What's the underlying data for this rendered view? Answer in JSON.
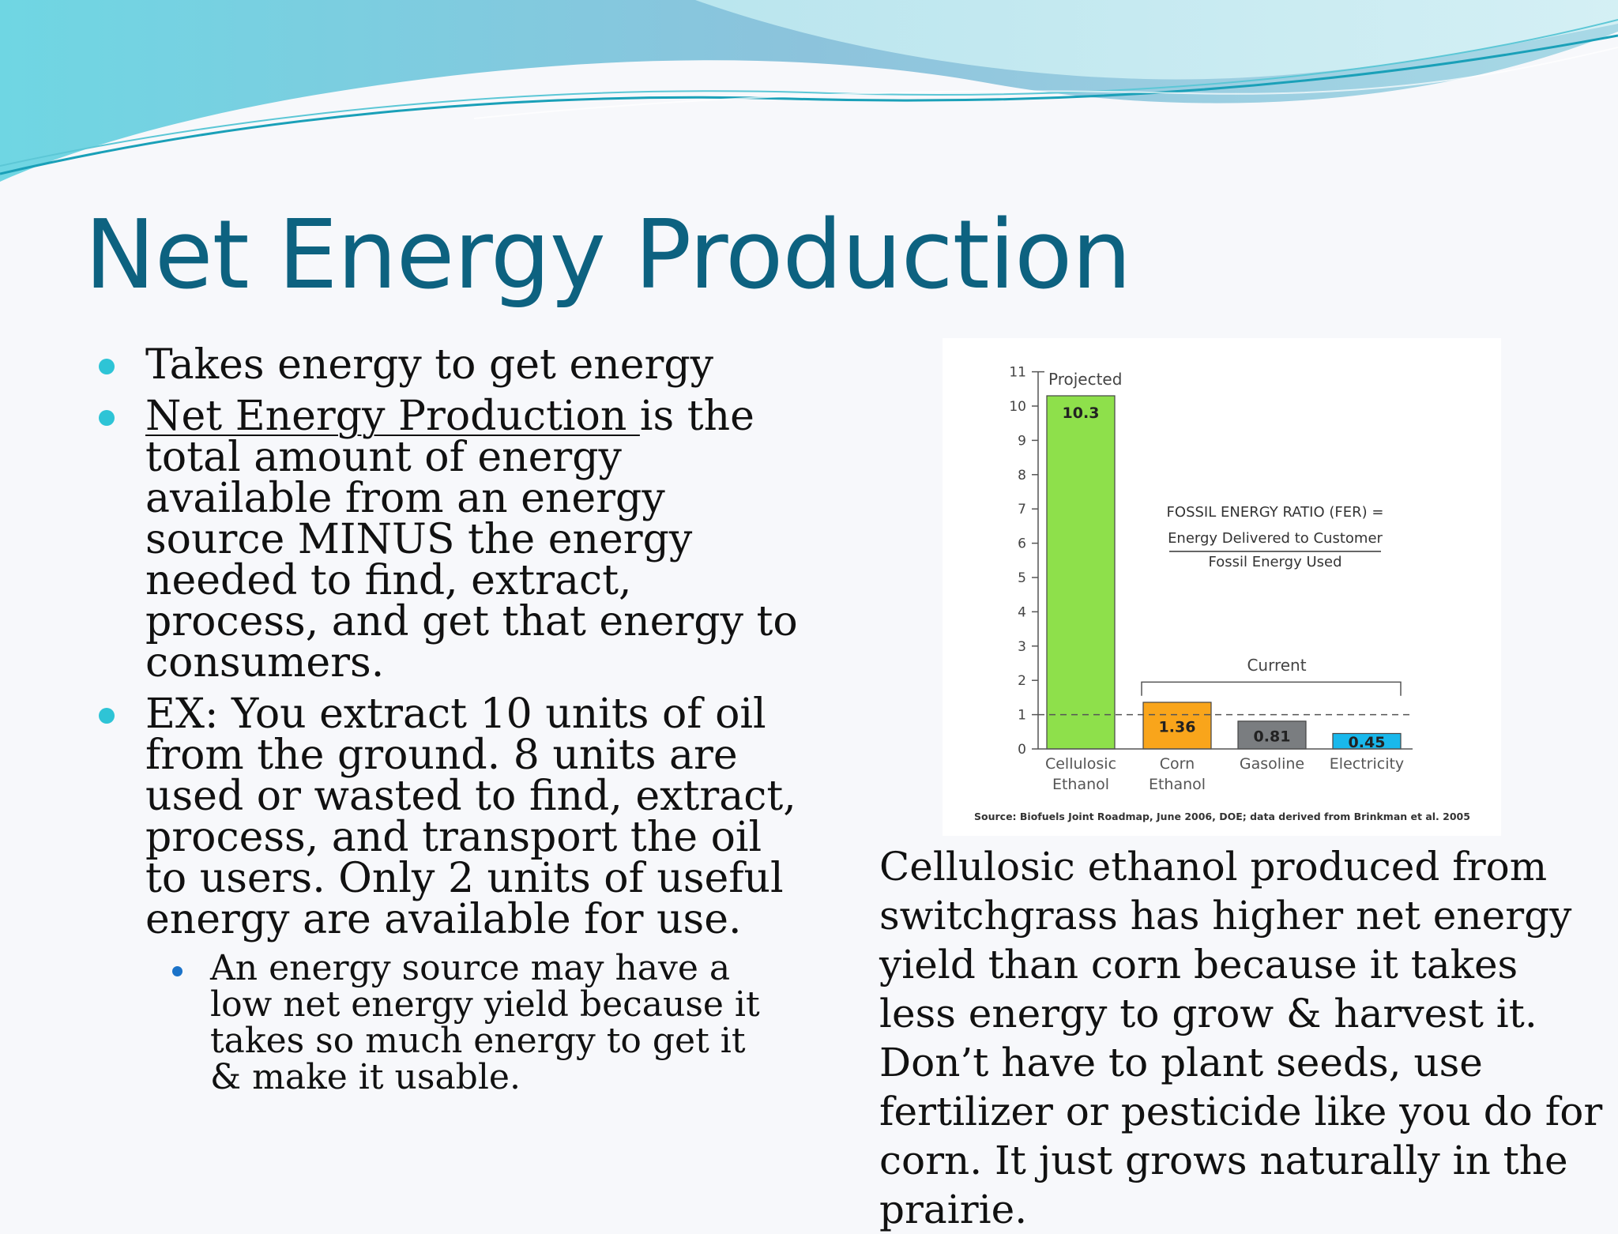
{
  "slide": {
    "title": "Net Energy Production",
    "bullets": [
      {
        "text": "Takes energy to get energy"
      },
      {
        "term": "Net Energy Production ",
        "text": "is the total amount of energy available from an energy source MINUS the energy needed to find, extract, process, and get that energy to consumers."
      },
      {
        "text": "EX:  You extract 10 units of oil from the ground.  8 units are used or wasted to find, extract, process, and transport the oil to users.  Only 2 units of useful energy are available for use."
      }
    ],
    "sub_bullet": "An energy source may have a low net energy yield because it takes so much energy to get it & make it usable.",
    "caption": "Cellulosic ethanol produced from switchgrass has higher net energy yield than corn because it takes less energy to grow & harvest it.  Don’t have to plant seeds, use fertilizer or pesticide like you do for corn.  It just grows naturally in the prairie."
  },
  "chart_data": {
    "type": "bar",
    "categories": [
      "Cellulosic\nEthanol",
      "Corn\nEthanol",
      "Gasoline",
      "Electricity"
    ],
    "values": [
      10.3,
      1.36,
      0.81,
      0.45
    ],
    "value_labels": [
      "10.3",
      "1.36",
      "0.81",
      "0.45"
    ],
    "bar_colors": [
      "#8ee04b",
      "#f9a51b",
      "#7a7d80",
      "#19b8ec"
    ],
    "ylim": [
      0,
      11
    ],
    "yticks": [
      0,
      1,
      2,
      3,
      4,
      5,
      6,
      7,
      8,
      9,
      10,
      11
    ],
    "reference_line": 1,
    "group_labels": {
      "projected": "Projected",
      "current": "Current"
    },
    "formula": {
      "title": "FOSSIL ENERGY RATIO (FER) =",
      "numerator": "Energy Delivered to Customer",
      "denominator": "Fossil Energy Used"
    },
    "source": "Source: Biofuels Joint Roadmap, June 2006, DOE; data derived from Brinkman et al. 2005"
  }
}
